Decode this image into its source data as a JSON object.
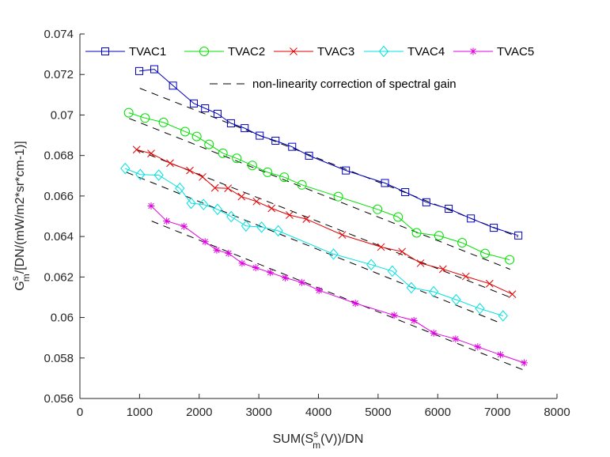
{
  "chart_data": {
    "type": "line",
    "title": "",
    "xlabel": {
      "main": "SUM(S",
      "sup": "s",
      "sub": "m",
      "tail": "(V))/DN"
    },
    "ylabel": {
      "main": "G",
      "sup": "s",
      "sub": "m",
      "tail": "/[DN/(mW/m2*sr*cm-1)]"
    },
    "xlim": [
      0,
      8000
    ],
    "ylim": [
      0.056,
      0.074
    ],
    "xticks": [
      0,
      1000,
      2000,
      3000,
      4000,
      5000,
      6000,
      7000,
      8000
    ],
    "xtick_labels": [
      "0",
      "1000",
      "2000",
      "3000",
      "4000",
      "5000",
      "6000",
      "7000",
      "8000"
    ],
    "yticks": [
      0.056,
      0.058,
      0.06,
      0.062,
      0.064,
      0.066,
      0.068,
      0.07,
      0.072,
      0.074
    ],
    "ytick_labels": [
      "0.056",
      "0.058",
      "0.06",
      "0.062",
      "0.064",
      "0.066",
      "0.068",
      "0.07",
      "0.072",
      "0.074"
    ],
    "grid": false,
    "legend_position": "top",
    "series": [
      {
        "name": "TVAC1",
        "color": "#0000c0",
        "marker": "square",
        "x": [
          995,
          1247,
          1561,
          1910,
          2099,
          2308,
          2533,
          2763,
          3015,
          3280,
          3559,
          3842,
          4460,
          5115,
          5455,
          5809,
          6184,
          6556,
          6940,
          7352
        ],
        "y": [
          0.07217,
          0.07226,
          0.07145,
          0.07057,
          0.07033,
          0.07006,
          0.06959,
          0.06935,
          0.06898,
          0.06873,
          0.06843,
          0.06799,
          0.06726,
          0.06664,
          0.06619,
          0.06569,
          0.06537,
          0.06489,
          0.06443,
          0.06405
        ],
        "fit": {
          "x": [
            1004,
            7347
          ],
          "y": [
            0.07132,
            0.06398
          ]
        }
      },
      {
        "name": "TVAC2",
        "color": "#00e000",
        "marker": "circle",
        "x": [
          818,
          1092,
          1402,
          1764,
          1959,
          2166,
          2397,
          2630,
          2891,
          3147,
          3426,
          3723,
          4333,
          4991,
          5336,
          5646,
          6021,
          6410,
          6794,
          7206
        ],
        "y": [
          0.07011,
          0.06985,
          0.06963,
          0.06918,
          0.06894,
          0.06855,
          0.06811,
          0.06786,
          0.06751,
          0.06717,
          0.06693,
          0.06655,
          0.06597,
          0.06534,
          0.06496,
          0.06418,
          0.06404,
          0.06369,
          0.06316,
          0.06285
        ],
        "fit": {
          "x": [
            826,
            7215
          ],
          "y": [
            0.06983,
            0.06238
          ]
        }
      },
      {
        "name": "TVAC3",
        "color": "#e00000",
        "marker": "x",
        "x": [
          951,
          1194,
          1512,
          1844,
          2056,
          2264,
          2484,
          2710,
          2962,
          3214,
          3515,
          3797,
          4399,
          5049,
          5402,
          5712,
          6088,
          6472,
          6870,
          7251
        ],
        "y": [
          0.06829,
          0.0681,
          0.06762,
          0.06726,
          0.06694,
          0.0664,
          0.06638,
          0.06597,
          0.06573,
          0.06539,
          0.06506,
          0.06486,
          0.06408,
          0.06348,
          0.06325,
          0.06268,
          0.06239,
          0.06203,
          0.06167,
          0.06115
        ],
        "fit": {
          "x": [
            959,
            7281
          ],
          "y": [
            0.06827,
            0.06092
          ]
        }
      },
      {
        "name": "TVAC4",
        "color": "#00e0e0",
        "marker": "diamond",
        "x": [
          760,
          1012,
          1322,
          1675,
          1866,
          2073,
          2308,
          2537,
          2785,
          3046,
          3325,
          4253,
          4885,
          5239,
          5557,
          5932,
          6309,
          6707,
          7095
        ],
        "y": [
          0.06736,
          0.06706,
          0.06703,
          0.06638,
          0.06564,
          0.06558,
          0.06534,
          0.06498,
          0.06452,
          0.06446,
          0.06428,
          0.06313,
          0.06261,
          0.06229,
          0.06147,
          0.06127,
          0.06088,
          0.06044,
          0.06008
        ],
        "fit": {
          "x": [
            782,
            7082
          ],
          "y": [
            0.06717,
            0.05969
          ]
        }
      },
      {
        "name": "TVAC5",
        "color": "#e000e0",
        "marker": "asterisk",
        "x": [
          1194,
          1455,
          1747,
          2099,
          2294,
          2493,
          2719,
          2948,
          3192,
          3444,
          3723,
          4009,
          4619,
          5269,
          5601,
          5932,
          6300,
          6671,
          7052,
          7450
        ],
        "y": [
          0.06551,
          0.06476,
          0.0645,
          0.06374,
          0.06333,
          0.06317,
          0.06268,
          0.06246,
          0.06222,
          0.06196,
          0.06173,
          0.06134,
          0.0607,
          0.06011,
          0.05985,
          0.05923,
          0.05894,
          0.05855,
          0.05816,
          0.05776
        ],
        "fit": {
          "x": [
            1203,
            7436
          ],
          "y": [
            0.06476,
            0.05741
          ]
        }
      }
    ],
    "fit_legend_label": "non-linearity correction of spectral gain",
    "fit_color": "#000000"
  }
}
